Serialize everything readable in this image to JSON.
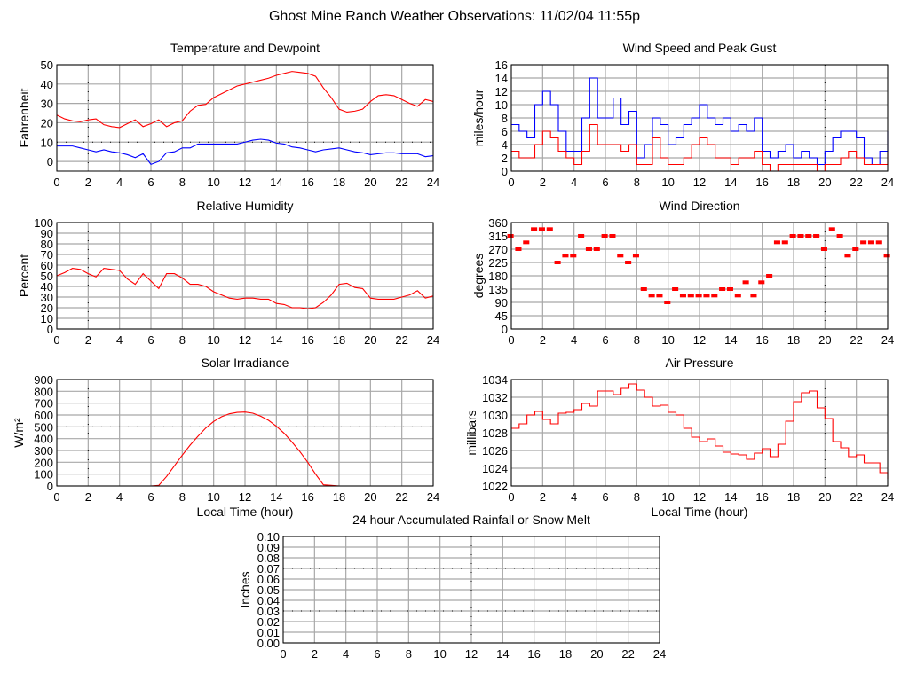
{
  "page_title": "Ghost Mine Ranch Weather Observations: 11/02/04 11:55p",
  "colors": {
    "red": "#ff0000",
    "blue": "#0000ff",
    "grid": "#a8a8a8"
  },
  "chart_data": [
    {
      "id": "temperature",
      "type": "line",
      "title": "Temperature and Dewpoint",
      "xlabel": "",
      "ylabel": "Fahrenheit",
      "xlim": [
        0,
        24
      ],
      "ylim": [
        -5,
        50
      ],
      "xticks": [
        0,
        2,
        4,
        6,
        8,
        10,
        12,
        14,
        16,
        18,
        20,
        22,
        24
      ],
      "yticks": [
        0,
        10,
        20,
        30,
        40,
        50
      ],
      "grid": true,
      "marker_lines": {
        "x": [
          2
        ],
        "y": [
          10
        ]
      },
      "x_step": 0.5,
      "series": [
        {
          "color": "#ff0000",
          "values": [
            24,
            22,
            21,
            20.5,
            21.5,
            22,
            19,
            18,
            17.5,
            19.5,
            21.5,
            18,
            19.5,
            21.5,
            18,
            20,
            21,
            26,
            29,
            29.5,
            33,
            35,
            37,
            39,
            40,
            41,
            42,
            43,
            44.5,
            45.5,
            46.5,
            46,
            45.5,
            44,
            38,
            33,
            27,
            25.5,
            26,
            27,
            31,
            34,
            34.5,
            34,
            32,
            30,
            28.5,
            32,
            31
          ]
        },
        {
          "color": "#0000ff",
          "values": [
            8,
            8,
            8,
            7,
            6,
            5,
            6,
            5,
            4.5,
            3.5,
            2,
            4,
            -1.5,
            0,
            4.5,
            5,
            7,
            7,
            9,
            9,
            9,
            9,
            9,
            9,
            10,
            11,
            11.5,
            11,
            9.5,
            9,
            7.5,
            7,
            6,
            5,
            6,
            6.5,
            7,
            6,
            5,
            4.5,
            3.5,
            4,
            4.5,
            4.5,
            4,
            4,
            4,
            2.5,
            3
          ]
        }
      ]
    },
    {
      "id": "wind-speed",
      "type": "line",
      "title": "Wind Speed and Peak Gust",
      "xlabel": "",
      "ylabel": "miles/hour",
      "xlim": [
        0,
        24
      ],
      "ylim": [
        0,
        16
      ],
      "xticks": [
        0,
        2,
        4,
        6,
        8,
        10,
        12,
        14,
        16,
        18,
        20,
        22,
        24
      ],
      "yticks": [
        0,
        2,
        4,
        6,
        8,
        10,
        12,
        14,
        16
      ],
      "grid": true,
      "step": true,
      "marker_lines": {
        "x": [
          20
        ],
        "y": []
      },
      "x_step": 0.5,
      "series": [
        {
          "color": "#0000ff",
          "values": [
            7,
            6,
            5,
            10,
            12,
            10,
            6,
            3,
            3,
            8,
            14,
            8,
            8,
            11,
            7,
            9,
            2,
            4,
            8,
            7,
            4,
            5,
            7,
            8,
            10,
            8,
            7,
            8,
            6,
            7,
            6,
            8,
            3,
            2,
            3,
            4,
            2,
            3,
            2,
            1,
            3,
            5,
            6,
            6,
            5,
            2,
            1,
            3,
            6
          ]
        },
        {
          "color": "#ff0000",
          "values": [
            3,
            2,
            2,
            4,
            6,
            5,
            3,
            2,
            1,
            3,
            7,
            4,
            4,
            4,
            3,
            4,
            1,
            1,
            5,
            2,
            1,
            1,
            2,
            4,
            5,
            4,
            2,
            2,
            1,
            2,
            2,
            3,
            1,
            0,
            1,
            1,
            1,
            1,
            1,
            0,
            1,
            1,
            2,
            3,
            2,
            1,
            1,
            1,
            3
          ]
        }
      ]
    },
    {
      "id": "humidity",
      "type": "line",
      "title": "Relative Humidity",
      "xlabel": "",
      "ylabel": "Percent",
      "xlim": [
        0,
        24
      ],
      "ylim": [
        0,
        100
      ],
      "xticks": [
        0,
        2,
        4,
        6,
        8,
        10,
        12,
        14,
        16,
        18,
        20,
        22,
        24
      ],
      "yticks": [
        0,
        10,
        20,
        30,
        40,
        50,
        60,
        70,
        80,
        90,
        100
      ],
      "grid": true,
      "marker_lines": {
        "x": [
          2
        ],
        "y": []
      },
      "x_step": 0.5,
      "series": [
        {
          "color": "#ff0000",
          "values": [
            50,
            53,
            57,
            56,
            52,
            49,
            57,
            56,
            55,
            47,
            42,
            52,
            45,
            38,
            52,
            52,
            48,
            42,
            42,
            40,
            35,
            32,
            29,
            28,
            29,
            29,
            28,
            28,
            24,
            23,
            20,
            20,
            19,
            20,
            25,
            32,
            42,
            43,
            39,
            38,
            29,
            28,
            28,
            28,
            30,
            32,
            36,
            29,
            31
          ]
        }
      ]
    },
    {
      "id": "wind-direction",
      "type": "scatter",
      "title": "Wind Direction",
      "xlabel": "",
      "ylabel": "degrees",
      "xlim": [
        0,
        24
      ],
      "ylim": [
        0,
        360
      ],
      "xticks": [
        0,
        2,
        4,
        6,
        8,
        10,
        12,
        14,
        16,
        18,
        20,
        22,
        24
      ],
      "yticks": [
        0,
        45,
        90,
        135,
        180,
        225,
        270,
        315,
        360
      ],
      "grid": true,
      "marker_lines": {
        "x": [
          20
        ],
        "y": []
      },
      "x_step": 0.5,
      "series": [
        {
          "color": "#ff0000",
          "values": [
            315,
            270,
            293,
            338,
            338,
            338,
            225,
            248,
            248,
            315,
            270,
            270,
            315,
            315,
            248,
            225,
            248,
            135,
            113,
            113,
            90,
            135,
            113,
            113,
            113,
            113,
            113,
            135,
            135,
            113,
            158,
            113,
            158,
            180,
            293,
            293,
            315,
            315,
            315,
            315,
            270,
            338,
            315,
            248,
            270,
            293,
            293,
            293,
            248
          ]
        }
      ]
    },
    {
      "id": "solar",
      "type": "line",
      "title": "Solar Irradiance",
      "xlabel": "Local Time (hour)",
      "ylabel": "W/m²",
      "xlim": [
        0,
        24
      ],
      "ylim": [
        0,
        900
      ],
      "xticks": [
        0,
        2,
        4,
        6,
        8,
        10,
        12,
        14,
        16,
        18,
        20,
        22,
        24
      ],
      "yticks": [
        0,
        100,
        200,
        300,
        400,
        500,
        600,
        700,
        800,
        900
      ],
      "grid": true,
      "marker_lines": {
        "x": [
          2
        ],
        "y": [
          500
        ]
      },
      "x_step": 0.5,
      "series": [
        {
          "color": "#ff0000",
          "values": [
            0,
            0,
            0,
            0,
            0,
            0,
            0,
            0,
            0,
            0,
            0,
            0,
            0,
            5,
            80,
            170,
            260,
            345,
            420,
            490,
            545,
            585,
            610,
            622,
            625,
            615,
            590,
            555,
            505,
            445,
            370,
            290,
            200,
            100,
            10,
            5,
            0,
            0,
            0,
            0,
            0,
            0,
            0,
            0,
            0,
            0,
            0,
            0,
            0
          ]
        }
      ]
    },
    {
      "id": "pressure",
      "type": "line",
      "title": "Air Pressure",
      "xlabel": "Local Time (hour)",
      "ylabel": "millibars",
      "xlim": [
        0,
        24
      ],
      "ylim": [
        1022,
        1034
      ],
      "xticks": [
        0,
        2,
        4,
        6,
        8,
        10,
        12,
        14,
        16,
        18,
        20,
        22,
        24
      ],
      "yticks": [
        1022,
        1024,
        1026,
        1028,
        1030,
        1032,
        1034
      ],
      "grid": true,
      "step": true,
      "marker_lines": {
        "x": [
          20
        ],
        "y": []
      },
      "x_step": 0.5,
      "series": [
        {
          "color": "#ff0000",
          "values": [
            1028.5,
            1029,
            1030,
            1030.4,
            1029.5,
            1029,
            1030.2,
            1030.3,
            1030.6,
            1031.3,
            1031,
            1032.7,
            1032.7,
            1032.3,
            1033,
            1033.5,
            1032.8,
            1032,
            1031,
            1031.1,
            1030.3,
            1030,
            1028.5,
            1027.5,
            1027,
            1027.3,
            1026.5,
            1025.8,
            1025.6,
            1025.5,
            1025,
            1025.7,
            1026.2,
            1025.3,
            1026.7,
            1029.3,
            1031.5,
            1032.5,
            1032.7,
            1030.8,
            1029.6,
            1027,
            1026.3,
            1025.3,
            1025.5,
            1024.6,
            1024.6,
            1023.5,
            1022.8
          ]
        }
      ]
    },
    {
      "id": "rainfall",
      "type": "line",
      "title": "24 hour Accumulated Rainfall or Snow Melt",
      "xlabel": "",
      "ylabel": "Inches",
      "xlim": [
        0,
        24
      ],
      "ylim": [
        0,
        0.1
      ],
      "xticks": [
        0,
        2,
        4,
        6,
        8,
        10,
        12,
        14,
        16,
        18,
        20,
        22,
        24
      ],
      "yticks": [
        "0.00",
        "0.01",
        "0.02",
        "0.03",
        "0.04",
        "0.05",
        "0.06",
        "0.07",
        "0.08",
        "0.09",
        "0.10"
      ],
      "grid": true,
      "marker_lines": {
        "x": [
          12
        ],
        "y": [
          0.03,
          0.07
        ]
      },
      "x_step": 0.5,
      "series": []
    }
  ]
}
